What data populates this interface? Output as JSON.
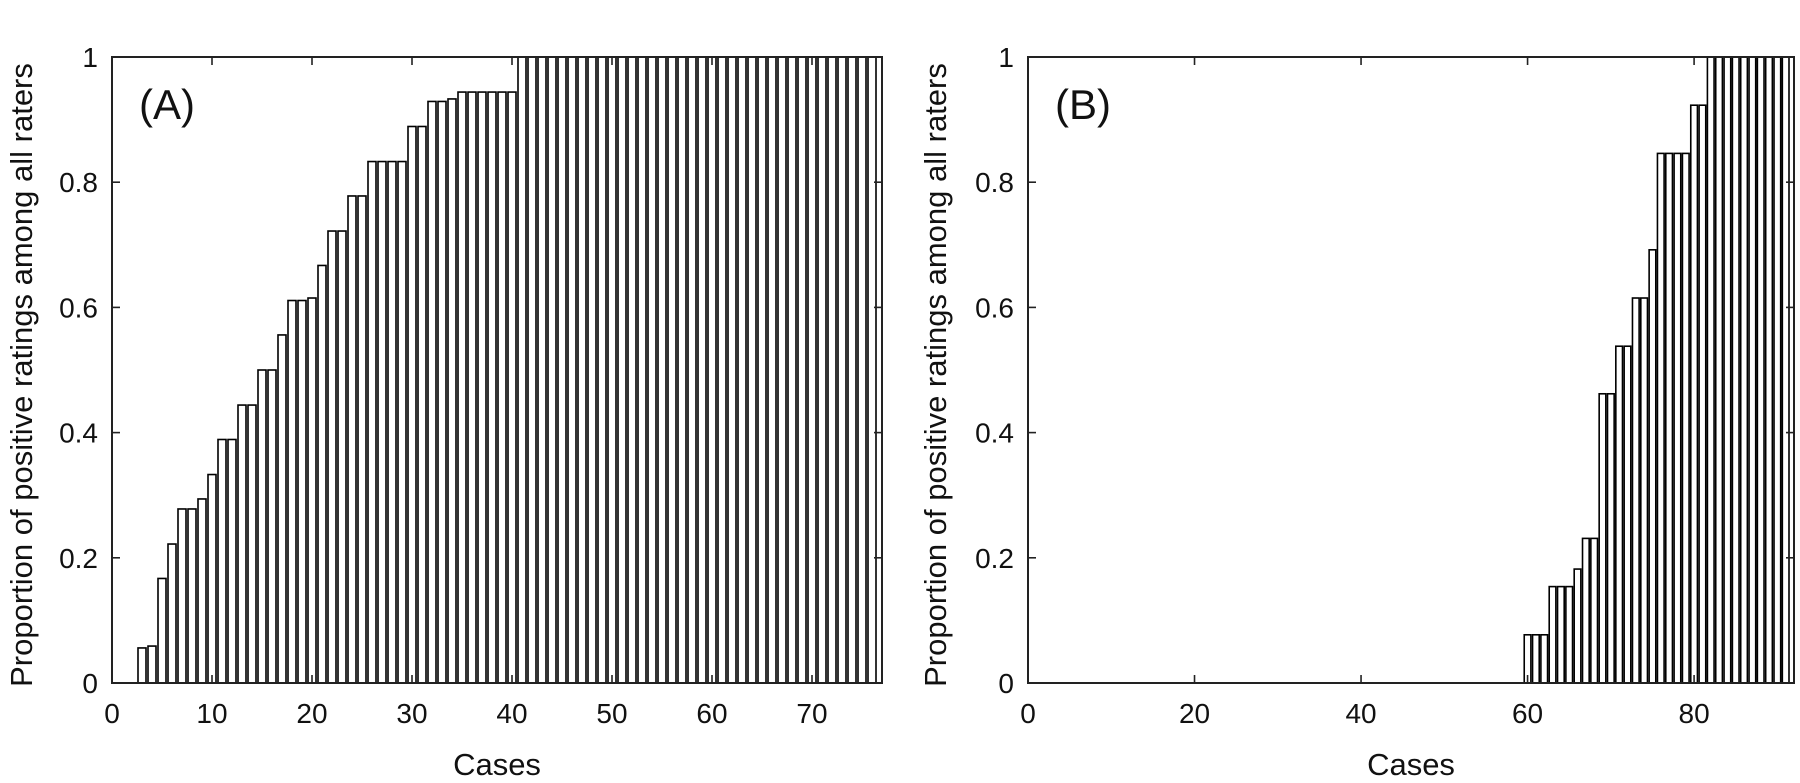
{
  "chart_data": [
    {
      "type": "bar",
      "panel_label": "(A)",
      "title": "",
      "xlabel": "Cases",
      "ylabel": "Proportion of positive ratings among all raters",
      "xlim": [
        0,
        77
      ],
      "ylim": [
        0,
        1
      ],
      "xticks": [
        0,
        10,
        20,
        30,
        40,
        50,
        60,
        70
      ],
      "yticks": [
        0,
        0.2,
        0.4,
        0.6,
        0.8,
        1
      ],
      "ytick_labels": [
        "0",
        "0.2",
        "0.4",
        "0.6",
        "0.8",
        "1"
      ],
      "grid": false,
      "bar_fill": "#ffffff",
      "bar_stroke": "#000000",
      "x": [
        1,
        2,
        3,
        4,
        5,
        6,
        7,
        8,
        9,
        10,
        11,
        12,
        13,
        14,
        15,
        16,
        17,
        18,
        19,
        20,
        21,
        22,
        23,
        24,
        25,
        26,
        27,
        28,
        29,
        30,
        31,
        32,
        33,
        34,
        35,
        36,
        37,
        38,
        39,
        40,
        41,
        42,
        43,
        44,
        45,
        46,
        47,
        48,
        49,
        50,
        51,
        52,
        53,
        54,
        55,
        56,
        57,
        58,
        59,
        60,
        61,
        62,
        63,
        64,
        65,
        66,
        67,
        68,
        69,
        70,
        71,
        72,
        73,
        74,
        75,
        76
      ],
      "values": [
        0,
        0,
        0.056,
        0.059,
        0.167,
        0.222,
        0.278,
        0.278,
        0.294,
        0.333,
        0.389,
        0.389,
        0.444,
        0.444,
        0.5,
        0.5,
        0.556,
        0.611,
        0.611,
        0.615,
        0.667,
        0.722,
        0.722,
        0.778,
        0.778,
        0.833,
        0.833,
        0.833,
        0.833,
        0.889,
        0.889,
        0.929,
        0.929,
        0.933,
        0.944,
        0.944,
        0.944,
        0.944,
        0.944,
        0.944,
        1,
        1,
        1,
        1,
        1,
        1,
        1,
        1,
        1,
        1,
        1,
        1,
        1,
        1,
        1,
        1,
        1,
        1,
        1,
        1,
        1,
        1,
        1,
        1,
        1,
        1,
        1,
        1,
        1,
        1,
        1,
        1,
        1,
        1,
        1,
        1
      ]
    },
    {
      "type": "bar",
      "panel_label": "(B)",
      "title": "",
      "xlabel": "Cases",
      "ylabel": "Proportion of positive ratings among all raters",
      "xlim": [
        0,
        92
      ],
      "ylim": [
        0,
        1
      ],
      "xticks": [
        0,
        20,
        40,
        60,
        80
      ],
      "yticks": [
        0,
        0.2,
        0.4,
        0.6,
        0.8,
        1
      ],
      "ytick_labels": [
        "0",
        "0.2",
        "0.4",
        "0.6",
        "0.8",
        "1"
      ],
      "grid": false,
      "bar_fill": "#ffffff",
      "bar_stroke": "#000000",
      "x": [
        1,
        2,
        3,
        4,
        5,
        6,
        7,
        8,
        9,
        10,
        11,
        12,
        13,
        14,
        15,
        16,
        17,
        18,
        19,
        20,
        21,
        22,
        23,
        24,
        25,
        26,
        27,
        28,
        29,
        30,
        31,
        32,
        33,
        34,
        35,
        36,
        37,
        38,
        39,
        40,
        41,
        42,
        43,
        44,
        45,
        46,
        47,
        48,
        49,
        50,
        51,
        52,
        53,
        54,
        55,
        56,
        57,
        58,
        59,
        60,
        61,
        62,
        63,
        64,
        65,
        66,
        67,
        68,
        69,
        70,
        71,
        72,
        73,
        74,
        75,
        76,
        77,
        78,
        79,
        80,
        81,
        82,
        83,
        84,
        85,
        86,
        87,
        88,
        89,
        90,
        91
      ],
      "values": [
        0,
        0,
        0,
        0,
        0,
        0,
        0,
        0,
        0,
        0,
        0,
        0,
        0,
        0,
        0,
        0,
        0,
        0,
        0,
        0,
        0,
        0,
        0,
        0,
        0,
        0,
        0,
        0,
        0,
        0,
        0,
        0,
        0,
        0,
        0,
        0,
        0,
        0,
        0,
        0,
        0,
        0,
        0,
        0,
        0,
        0,
        0,
        0,
        0,
        0,
        0,
        0,
        0,
        0,
        0,
        0,
        0,
        0,
        0,
        0.077,
        0.077,
        0.077,
        0.154,
        0.154,
        0.154,
        0.182,
        0.231,
        0.231,
        0.462,
        0.462,
        0.538,
        0.538,
        0.615,
        0.615,
        0.692,
        0.846,
        0.846,
        0.846,
        0.846,
        0.923,
        0.923,
        1,
        1,
        1,
        1,
        1,
        1,
        1,
        1,
        1,
        1
      ]
    }
  ]
}
